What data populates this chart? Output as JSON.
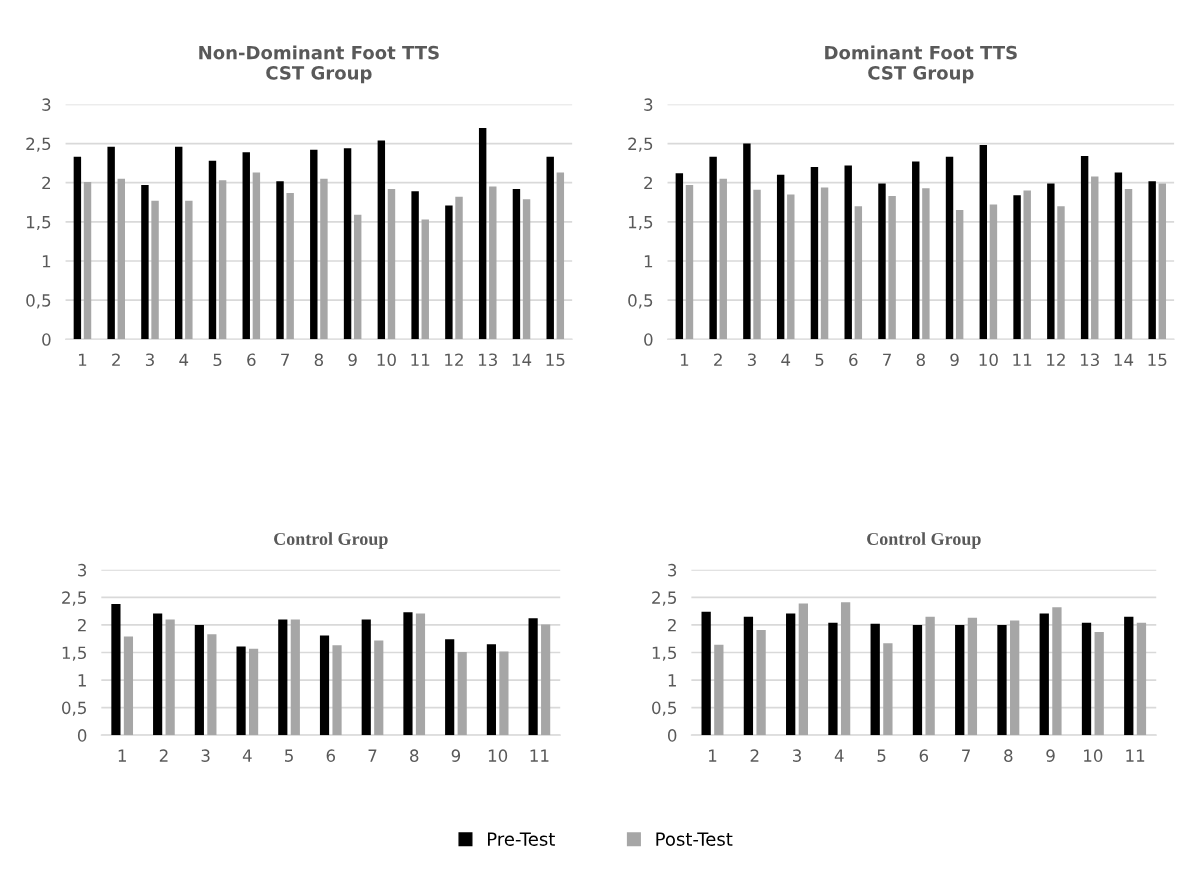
{
  "chart_data": [
    {
      "type": "bar",
      "title": "Non-Dominant Foot TTS\nCST Group",
      "categories": [
        "1",
        "2",
        "3",
        "4",
        "5",
        "6",
        "7",
        "8",
        "9",
        "10",
        "11",
        "12",
        "13",
        "14",
        "15"
      ],
      "ylim": [
        0,
        3
      ],
      "yticks": [
        0,
        {
          "value": 0.5,
          "label": "0,5"
        },
        1,
        {
          "value": 1.5,
          "label": "1,5"
        },
        2,
        {
          "value": 2.5,
          "label": "2,5"
        },
        3
      ],
      "grid": "y",
      "series": [
        {
          "color": "#000000",
          "values": [
            2.33,
            2.46,
            1.97,
            2.46,
            2.28,
            2.39,
            2.02,
            2.42,
            2.44,
            2.54,
            1.89,
            1.71,
            2.7,
            1.92,
            2.33
          ]
        },
        {
          "color": "#a6a6a6",
          "values": [
            2.01,
            2.05,
            1.77,
            1.77,
            2.03,
            2.13,
            1.87,
            2.05,
            1.59,
            1.92,
            1.53,
            1.82,
            1.95,
            1.79,
            2.13
          ]
        }
      ]
    },
    {
      "type": "bar",
      "title": "Dominant Foot TTS\nCST Group",
      "categories": [
        "1",
        "2",
        "3",
        "4",
        "5",
        "6",
        "7",
        "8",
        "9",
        "10",
        "11",
        "12",
        "13",
        "14",
        "15"
      ],
      "ylim": [
        0,
        3
      ],
      "yticks": [
        0,
        {
          "value": 0.5,
          "label": "0,5"
        },
        1,
        {
          "value": 1.5,
          "label": "1,5"
        },
        2,
        {
          "value": 2.5,
          "label": "2,5"
        },
        3
      ],
      "grid": "y",
      "series": [
        {
          "color": "#000000",
          "values": [
            2.12,
            2.33,
            2.5,
            2.1,
            2.2,
            2.22,
            1.99,
            2.27,
            2.33,
            2.48,
            1.84,
            1.99,
            2.34,
            2.13,
            2.02
          ]
        },
        {
          "color": "#a6a6a6",
          "values": [
            1.97,
            2.05,
            1.91,
            1.85,
            1.94,
            1.7,
            1.83,
            1.93,
            1.65,
            1.72,
            1.9,
            1.7,
            2.08,
            1.92,
            1.99
          ]
        }
      ]
    },
    {
      "type": "bar",
      "title": "Control Group",
      "categories": [
        "1",
        "2",
        "3",
        "4",
        "5",
        "6",
        "7",
        "8",
        "9",
        "10",
        "11"
      ],
      "ylim": [
        0,
        3
      ],
      "yticks": [
        0,
        {
          "value": 0.5,
          "label": "0,5"
        },
        1,
        {
          "value": 1.5,
          "label": "1,5"
        },
        2,
        {
          "value": 2.5,
          "label": "2,5"
        },
        3
      ],
      "grid": "y",
      "series": [
        {
          "color": "#000000",
          "values": [
            2.38,
            2.21,
            2.0,
            1.61,
            2.1,
            1.81,
            2.1,
            2.23,
            1.74,
            1.65,
            2.12
          ]
        },
        {
          "color": "#a6a6a6",
          "values": [
            1.79,
            2.1,
            1.83,
            1.57,
            2.1,
            1.63,
            1.72,
            2.21,
            1.51,
            1.52,
            2.01
          ]
        }
      ]
    },
    {
      "type": "bar",
      "title": "Control Group",
      "categories": [
        "1",
        "2",
        "3",
        "4",
        "5",
        "6",
        "7",
        "8",
        "9",
        "10",
        "11"
      ],
      "ylim": [
        0,
        3
      ],
      "yticks": [
        0,
        {
          "value": 0.5,
          "label": "0,5"
        },
        1,
        {
          "value": 1.5,
          "label": "1,5"
        },
        2,
        {
          "value": 2.5,
          "label": "2,5"
        },
        3
      ],
      "grid": "y",
      "legend": "bottom",
      "series": [
        {
          "name": "Pre-Test",
          "color": "#000000",
          "values": [
            2.24,
            2.15,
            2.21,
            2.04,
            2.02,
            2.0,
            2.0,
            2.0,
            2.21,
            2.04,
            2.15
          ]
        },
        {
          "name": "Post-Test",
          "color": "#a6a6a6",
          "values": [
            1.64,
            1.91,
            2.39,
            2.41,
            1.67,
            2.15,
            2.13,
            2.08,
            2.32,
            1.87,
            2.04
          ]
        }
      ]
    }
  ]
}
